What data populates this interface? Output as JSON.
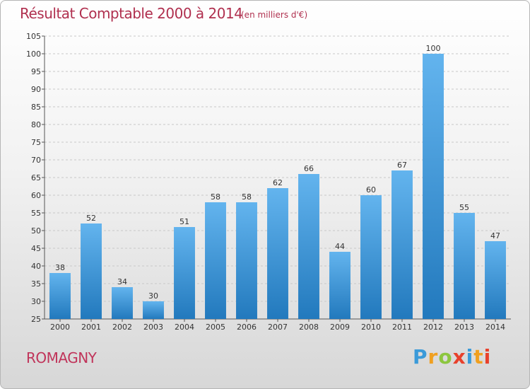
{
  "header": {
    "title": "Résultat Comptable 2000 à 2014",
    "subtitle": "(en milliers d'€)"
  },
  "footer": {
    "place": "ROMAGNY",
    "logo": "Proxiti"
  },
  "colors": {
    "bar_light": "#63b4ee",
    "bar_dark": "#2279bd",
    "title": "#b0304f",
    "grid": "#c8c8c8"
  },
  "chart_data": {
    "type": "bar",
    "title": "Résultat Comptable 2000 à 2014",
    "subtitle": "(en milliers d'€)",
    "categories": [
      "2000",
      "2001",
      "2002",
      "2003",
      "2004",
      "2005",
      "2006",
      "2007",
      "2008",
      "2009",
      "2010",
      "2011",
      "2012",
      "2013",
      "2014"
    ],
    "values": [
      38,
      52,
      34,
      30,
      51,
      58,
      58,
      62,
      66,
      44,
      60,
      67,
      100,
      55,
      47
    ],
    "ylim": [
      25,
      105
    ],
    "yticks": [
      25,
      30,
      35,
      40,
      45,
      50,
      55,
      60,
      65,
      70,
      75,
      80,
      85,
      90,
      95,
      100,
      105
    ],
    "grid": true
  }
}
